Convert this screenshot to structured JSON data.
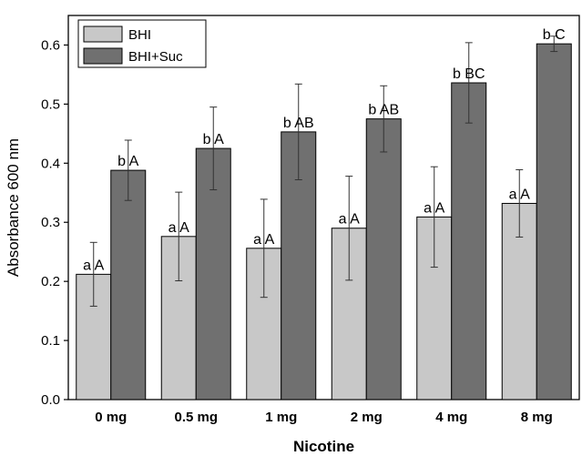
{
  "chart_data": {
    "type": "bar",
    "title": "",
    "xlabel": "Nicotine",
    "ylabel": "Absorbance 600 nm",
    "ylim": [
      0.0,
      0.65
    ],
    "yticks": [
      "0.0",
      "0.1",
      "0.2",
      "0.3",
      "0.4",
      "0.5",
      "0.6"
    ],
    "categories": [
      "0 mg",
      "0.5 mg",
      "1 mg",
      "2 mg",
      "4 mg",
      "8 mg"
    ],
    "legend_position": "top-left",
    "grid": false,
    "series": [
      {
        "name": "BHI",
        "color": "#c8c8c8",
        "values": [
          0.212,
          0.276,
          0.256,
          0.29,
          0.309,
          0.332
        ],
        "errors": [
          0.054,
          0.075,
          0.083,
          0.088,
          0.085,
          0.057
        ],
        "labels": [
          "a A",
          "a A",
          "a A",
          "a A",
          "a A",
          "a A"
        ]
      },
      {
        "name": "BHI+Suc",
        "color": "#707070",
        "values": [
          0.388,
          0.425,
          0.453,
          0.475,
          0.536,
          0.602
        ],
        "errors": [
          0.051,
          0.07,
          0.081,
          0.056,
          0.068,
          0.013
        ],
        "labels": [
          "b A",
          "b A",
          "b AB",
          "b AB",
          "b BC",
          "b C"
        ]
      }
    ]
  }
}
